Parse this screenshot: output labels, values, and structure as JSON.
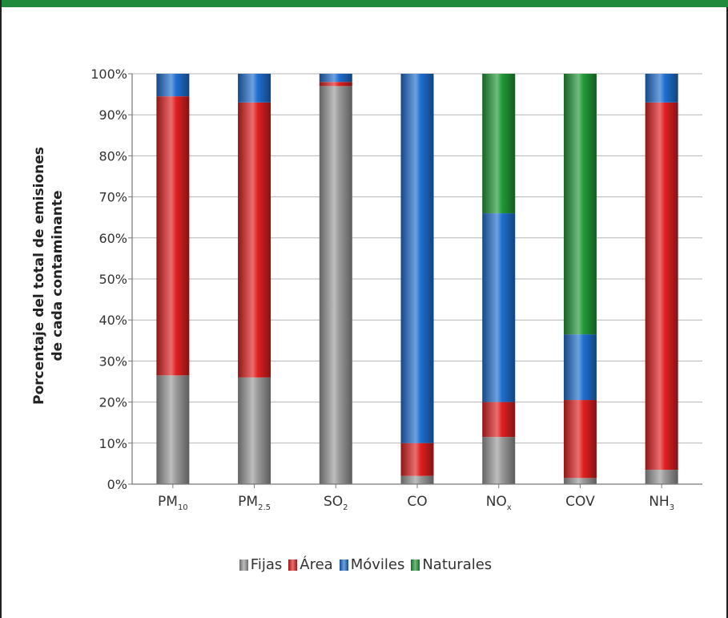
{
  "chart_data": {
    "type": "bar",
    "stacked": true,
    "ylabel": [
      "Porcentaje del total de emisiones",
      "de cada contaminante"
    ],
    "ylim": [
      0,
      100
    ],
    "yticks": [
      "0%",
      "10%",
      "20%",
      "30%",
      "40%",
      "50%",
      "60%",
      "70%",
      "80%",
      "90%",
      "100%"
    ],
    "categories": [
      {
        "base": "PM",
        "sub": "10"
      },
      {
        "base": "PM",
        "sub": "2.5"
      },
      {
        "base": "SO",
        "sub": "2"
      },
      {
        "base": "CO",
        "sub": ""
      },
      {
        "base": "NO",
        "sub": "x"
      },
      {
        "base": "COV",
        "sub": ""
      },
      {
        "base": "NH",
        "sub": "3"
      }
    ],
    "series": [
      {
        "name": "Fijas",
        "color": "#9a9a9a",
        "values": [
          26.5,
          26,
          97,
          2,
          11.5,
          1.5,
          3.5
        ]
      },
      {
        "name": "Área",
        "color": "#e02020",
        "values": [
          68,
          67,
          1,
          8,
          8.5,
          19,
          89.5
        ]
      },
      {
        "name": "Móviles",
        "color": "#1f6fd0",
        "values": [
          5.5,
          7,
          2,
          90,
          46,
          16,
          7
        ]
      },
      {
        "name": "Naturales",
        "color": "#229a37",
        "values": [
          0,
          0,
          0,
          0,
          34,
          63.5,
          0
        ]
      }
    ],
    "grid": true,
    "legend_position": "bottom"
  }
}
